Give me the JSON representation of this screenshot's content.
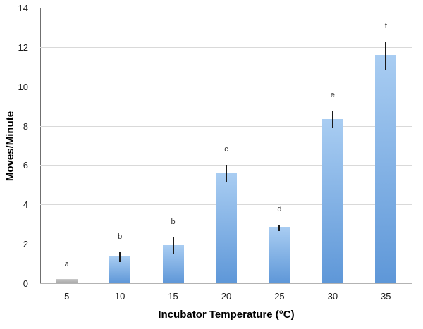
{
  "chart_data": {
    "type": "bar",
    "title": "",
    "xlabel": "Incubator Temperature (°C)",
    "ylabel": "Moves/Minute",
    "categories": [
      "5",
      "10",
      "15",
      "20",
      "25",
      "30",
      "35"
    ],
    "values": [
      0.2,
      1.35,
      1.95,
      5.6,
      2.85,
      8.35,
      11.6
    ],
    "errors": [
      0,
      0.25,
      0.4,
      0.45,
      0.15,
      0.45,
      0.7
    ],
    "point_labels": [
      "a",
      "b",
      "b",
      "c",
      "d",
      "e",
      "f"
    ],
    "bar_styles": [
      "gray",
      "blue",
      "blue",
      "blue",
      "blue",
      "blue",
      "blue"
    ],
    "ylim": [
      0,
      14
    ],
    "ytick_step": 2,
    "grid": true,
    "legend": false,
    "colors": {
      "blue_bar_top": "#a9cdf2",
      "blue_bar_bottom": "#5e97d8",
      "gray_bar_top": "#c9c9c9",
      "gray_bar_bottom": "#a6a6a6",
      "gridline": "#d9d9d9",
      "error_bar": "#1a1a1a",
      "axis_left": "#6f6f6f",
      "axis_bottom": "#b3b3b3"
    }
  }
}
